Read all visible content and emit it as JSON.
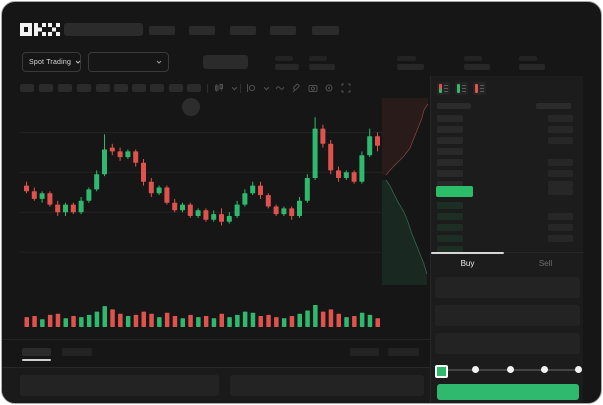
{
  "app": {
    "name": "OKX"
  },
  "colors": {
    "green": "#2eb96f",
    "red": "#e0524d",
    "last_price_green": "#2bbd68",
    "bid_bar_dim_green": "#1d2e24",
    "ask_bar_gray": "#292929",
    "amount_bar_gray": "#272727"
  },
  "market_bar": {
    "pair_selector_label": "Spot Trading"
  },
  "toolbar": {
    "icons": [
      "candle-style-icon",
      "chevron-down-icon",
      "indicator-icon",
      "chevron-down-icon",
      "line-tool-icon",
      "draw-icon",
      "camera-icon",
      "settings-icon",
      "fullscreen-icon"
    ]
  },
  "order_book": {
    "view_icons": [
      {
        "name": "orderbook-combined-icon",
        "top": "red",
        "bottom": "green"
      },
      {
        "name": "orderbook-bids-icon",
        "top": "green",
        "bottom": "green"
      },
      {
        "name": "orderbook-asks-icon",
        "top": "red",
        "bottom": "red"
      }
    ],
    "ask_rows": [
      {
        "amount": true
      },
      {
        "amount": true
      },
      {
        "amount": true
      },
      {
        "amount": false
      },
      {
        "amount": true
      },
      {
        "amount": true
      },
      {
        "amount": true
      }
    ],
    "last_price_row": {
      "highlight": "green",
      "amount": true
    },
    "bid_rows": [
      {
        "amount": false
      },
      {
        "amount": true
      },
      {
        "amount": true
      },
      {
        "amount": true
      },
      {
        "amount": false
      }
    ]
  },
  "trade_panel": {
    "tabs": [
      {
        "label": "Buy",
        "active": true
      },
      {
        "label": "Sell",
        "active": false
      }
    ],
    "fields": 3,
    "slider": {
      "positions": 5,
      "active_index": 0
    }
  },
  "chart_data": {
    "type": "candlestick",
    "title": "",
    "xlabel": "",
    "ylabel": "",
    "note_axes": "skeleton UI - no tick labels rendered",
    "price_scale": [
      0,
      100
    ],
    "gridline_levels": [
      84,
      63,
      42,
      21
    ],
    "candles": [
      [
        56,
        58,
        52,
        53
      ],
      [
        53,
        55,
        48,
        49
      ],
      [
        49,
        53,
        47,
        52
      ],
      [
        52,
        53,
        45,
        46
      ],
      [
        46,
        48,
        40,
        42
      ],
      [
        42,
        47,
        40,
        46
      ],
      [
        46,
        47,
        41,
        42
      ],
      [
        42,
        50,
        41,
        48
      ],
      [
        48,
        55,
        47,
        54
      ],
      [
        54,
        64,
        53,
        62
      ],
      [
        62,
        83,
        61,
        75
      ],
      [
        76,
        78,
        72,
        74
      ],
      [
        74,
        76,
        69,
        71
      ],
      [
        71,
        75,
        70,
        74
      ],
      [
        74,
        75,
        66,
        68
      ],
      [
        68,
        70,
        56,
        58
      ],
      [
        58,
        60,
        50,
        52
      ],
      [
        52,
        56,
        51,
        55
      ],
      [
        55,
        56,
        46,
        47
      ],
      [
        47,
        49,
        42,
        43
      ],
      [
        43,
        47,
        42,
        46
      ],
      [
        46,
        47,
        39,
        40
      ],
      [
        40,
        44,
        39,
        43
      ],
      [
        43,
        44,
        37,
        38
      ],
      [
        38,
        43,
        37,
        41
      ],
      [
        41,
        44,
        35,
        37
      ],
      [
        37,
        42,
        36,
        40
      ],
      [
        40,
        48,
        39,
        46
      ],
      [
        46,
        54,
        45,
        52
      ],
      [
        52,
        58,
        51,
        56
      ],
      [
        56,
        58,
        49,
        51
      ],
      [
        51,
        52,
        44,
        45
      ],
      [
        45,
        46,
        40,
        41
      ],
      [
        41,
        45,
        40,
        44
      ],
      [
        44,
        45,
        38,
        40
      ],
      [
        40,
        50,
        39,
        48
      ],
      [
        48,
        62,
        47,
        60
      ],
      [
        60,
        92,
        59,
        86
      ],
      [
        86,
        88,
        76,
        78
      ],
      [
        78,
        80,
        62,
        64
      ],
      [
        64,
        66,
        58,
        60
      ],
      [
        60,
        64,
        59,
        63
      ],
      [
        63,
        64,
        57,
        58
      ],
      [
        58,
        74,
        57,
        72
      ],
      [
        72,
        86,
        71,
        82
      ],
      [
        82,
        84,
        74,
        77
      ]
    ],
    "volume": [
      0.45,
      0.5,
      0.35,
      0.55,
      0.6,
      0.4,
      0.5,
      0.45,
      0.55,
      0.7,
      0.95,
      0.8,
      0.6,
      0.5,
      0.55,
      0.7,
      0.6,
      0.45,
      0.65,
      0.5,
      0.4,
      0.55,
      0.45,
      0.5,
      0.4,
      0.6,
      0.45,
      0.55,
      0.7,
      0.65,
      0.5,
      0.55,
      0.45,
      0.4,
      0.5,
      0.6,
      0.75,
      1.0,
      0.7,
      0.8,
      0.6,
      0.45,
      0.5,
      0.65,
      0.55,
      0.4
    ],
    "depth": {
      "type": "depth-silhouette",
      "asks_line": [
        [
          46,
          6
        ],
        [
          42,
          12
        ],
        [
          40,
          20
        ],
        [
          36,
          30
        ],
        [
          32,
          40
        ],
        [
          28,
          50
        ],
        [
          22,
          58
        ],
        [
          16,
          64
        ],
        [
          10,
          70
        ],
        [
          4,
          77
        ]
      ],
      "bids_line": [
        [
          4,
          82
        ],
        [
          8,
          88
        ],
        [
          12,
          96
        ],
        [
          16,
          104
        ],
        [
          22,
          114
        ],
        [
          26,
          124
        ],
        [
          30,
          136
        ],
        [
          34,
          146
        ],
        [
          38,
          156
        ],
        [
          42,
          166
        ],
        [
          45,
          176
        ]
      ]
    }
  }
}
